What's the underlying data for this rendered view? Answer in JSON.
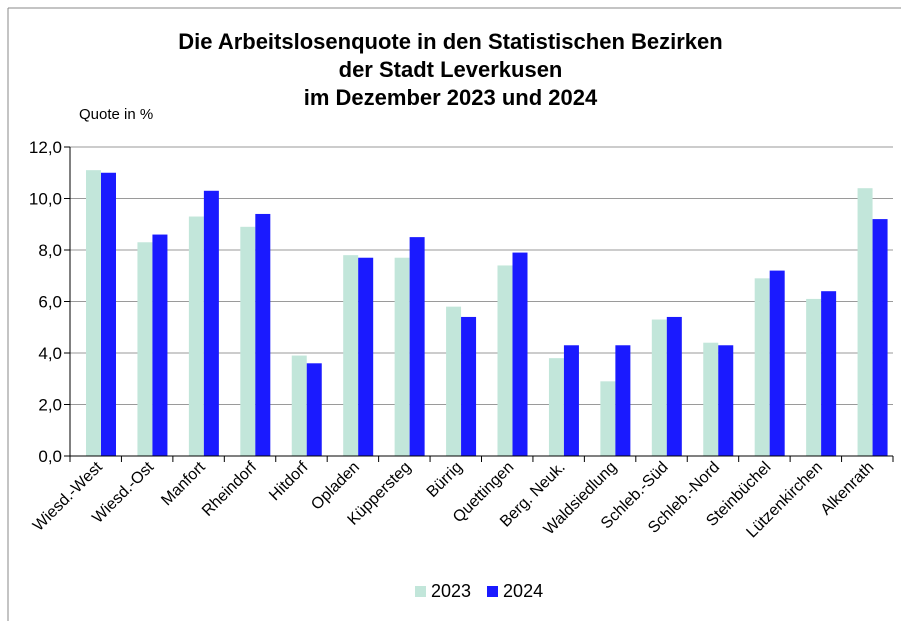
{
  "chart_data": {
    "type": "bar",
    "title_lines": [
      "Die Arbeitslosenquote in den Statistischen Bezirken",
      "der Stadt Leverkusen",
      "im Dezember 2023 und 2024"
    ],
    "ylabel": "Quote in %",
    "xlabel": "",
    "ylim": [
      0,
      12
    ],
    "yticks": [
      "0,0",
      "2,0",
      "4,0",
      "6,0",
      "8,0",
      "10,0",
      "12,0"
    ],
    "categories": [
      "Wiesd.-West",
      "Wiesd.-Ost",
      "Manfort",
      "Rheindorf",
      "Hitdorf",
      "Opladen",
      "Küppersteg",
      "Bürrig",
      "Quettingen",
      "Berg. Neuk.",
      "Waldsiedlung",
      "Schleb.-Süd",
      "Schleb.-Nord",
      "Steinbüchel",
      "Lützenkirchen",
      "Alkenrath"
    ],
    "series": [
      {
        "name": "2023",
        "color": "#c2e6da",
        "values": [
          11.1,
          8.3,
          9.3,
          8.9,
          3.9,
          7.8,
          7.7,
          5.8,
          7.4,
          3.8,
          2.9,
          5.3,
          4.4,
          6.9,
          6.1,
          10.4
        ]
      },
      {
        "name": "2024",
        "color": "#1a1aff",
        "values": [
          11.0,
          8.6,
          10.3,
          9.4,
          3.6,
          7.7,
          8.5,
          5.4,
          7.9,
          4.3,
          4.3,
          5.4,
          4.3,
          7.2,
          6.4,
          9.2
        ]
      }
    ],
    "grid": true,
    "legend": "bottom-center"
  }
}
